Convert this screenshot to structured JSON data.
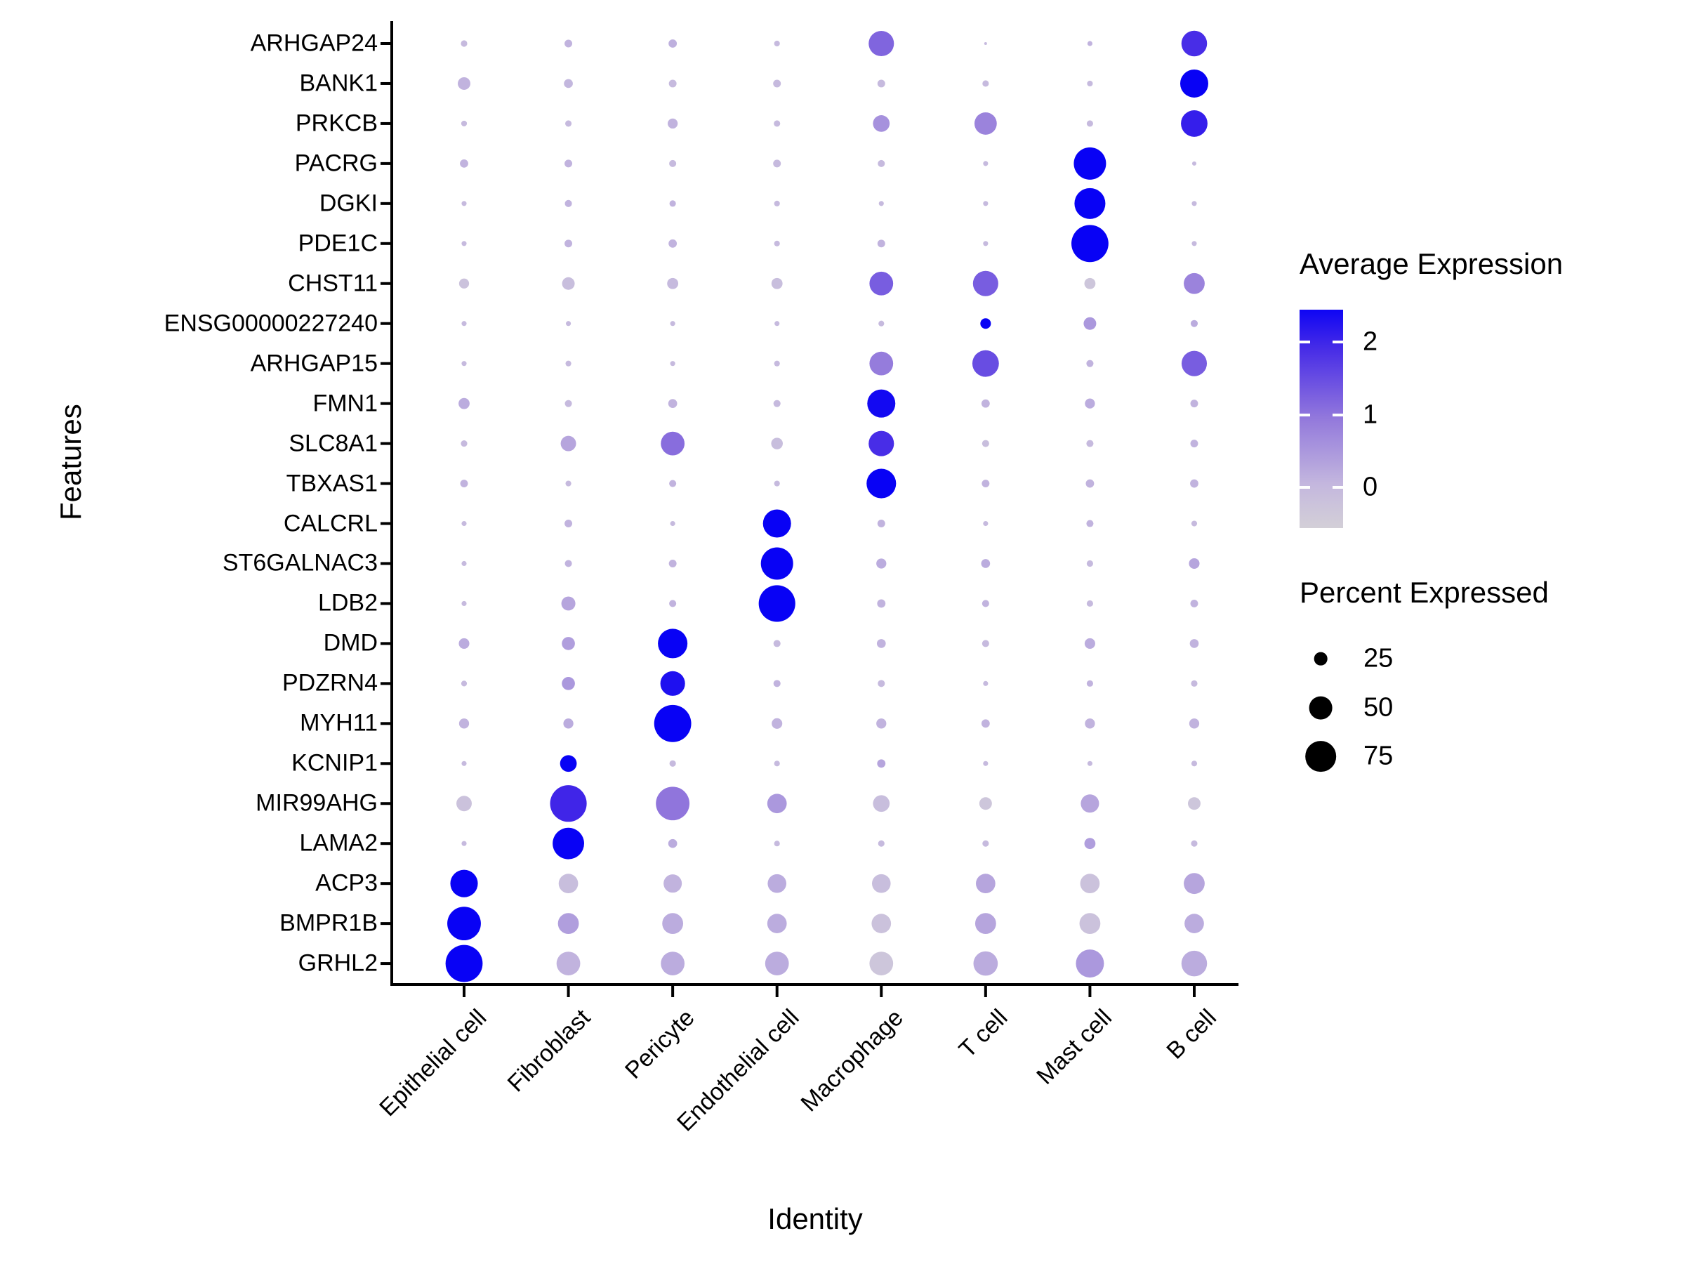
{
  "chart_data": {
    "type": "scatter",
    "variant": "dot_plot",
    "title": "",
    "xlabel": "Identity",
    "ylabel": "Features",
    "grid": false,
    "cell_types": [
      "Epithelial cell",
      "Fibroblast",
      "Pericyte",
      "Endothelial cell",
      "Macrophage",
      "T cell",
      "Mast cell",
      "B cell"
    ],
    "genes": [
      "ARHGAP24",
      "BANK1",
      "PRKCB",
      "PACRG",
      "DGKI",
      "PDE1C",
      "CHST11",
      "ENSG00000227240",
      "ARHGAP15",
      "FMN1",
      "SLC8A1",
      "TBXAS1",
      "CALCRL",
      "ST6GALNAC3",
      "LDB2",
      "DMD",
      "PDZRN4",
      "MYH11",
      "KCNIP1",
      "MIR99AHG",
      "LAMA2",
      "ACP3",
      "BMPR1B",
      "GRHL2"
    ],
    "percent_expressed": [
      [
        13,
        15,
        16,
        12,
        57,
        8,
        11,
        58
      ],
      [
        24,
        17,
        15,
        15,
        15,
        13,
        12,
        66
      ],
      [
        12,
        13,
        19,
        13,
        33,
        48,
        13,
        61
      ],
      [
        16,
        15,
        14,
        15,
        14,
        11,
        81,
        10
      ],
      [
        11,
        14,
        13,
        12,
        11,
        11,
        76,
        11
      ],
      [
        11,
        15,
        16,
        12,
        15,
        11,
        100,
        11
      ],
      [
        19,
        24,
        21,
        21,
        52,
        57,
        21,
        44
      ],
      [
        11,
        11,
        11,
        11,
        12,
        20,
        24,
        14
      ],
      [
        11,
        12,
        11,
        12,
        52,
        61,
        14,
        57
      ],
      [
        21,
        14,
        17,
        14,
        66,
        16,
        19,
        15
      ],
      [
        13,
        30,
        52,
        22,
        57,
        14,
        14,
        15
      ],
      [
        15,
        12,
        14,
        12,
        71,
        15,
        16,
        16
      ],
      [
        11,
        15,
        11,
        66,
        15,
        11,
        14,
        12
      ],
      [
        11,
        14,
        15,
        81,
        19,
        17,
        13,
        20
      ],
      [
        11,
        27,
        14,
        98,
        16,
        14,
        13,
        15
      ],
      [
        20,
        25,
        71,
        14,
        17,
        14,
        20,
        17
      ],
      [
        12,
        25,
        55,
        14,
        14,
        11,
        13,
        13
      ],
      [
        19,
        19,
        100,
        20,
        19,
        16,
        19,
        19
      ],
      [
        11,
        33,
        13,
        12,
        16,
        11,
        11,
        12
      ],
      [
        30,
        98,
        86,
        40,
        33,
        24,
        37,
        24
      ],
      [
        11,
        78,
        17,
        12,
        13,
        13,
        21,
        13
      ],
      [
        64,
        40,
        37,
        38,
        38,
        40,
        40,
        44
      ],
      [
        86,
        44,
        44,
        40,
        40,
        44,
        44,
        40
      ],
      [
        100,
        52,
        52,
        52,
        52,
        54,
        66,
        58
      ]
    ],
    "average_expression": [
      [
        0,
        0.1,
        0.15,
        0,
        1.2,
        0,
        0.1,
        1.9
      ],
      [
        0.1,
        0.05,
        0,
        0,
        0,
        0,
        0,
        2.5
      ],
      [
        0,
        0,
        0.1,
        0,
        0.6,
        0.8,
        0,
        2.1
      ],
      [
        0.1,
        0.1,
        0,
        0,
        0,
        0,
        2.5,
        0
      ],
      [
        0,
        0.1,
        0.1,
        0,
        0,
        0,
        2.5,
        0
      ],
      [
        0,
        0.1,
        0.1,
        0,
        0.1,
        0,
        2.5,
        0
      ],
      [
        -0.2,
        -0.1,
        0,
        -0.1,
        1.3,
        1.3,
        -0.3,
        0.8
      ],
      [
        0,
        0,
        0,
        0,
        0,
        2.5,
        0.5,
        0.2
      ],
      [
        0,
        0,
        0,
        0,
        0.9,
        1.5,
        0.1,
        1.3
      ],
      [
        0.2,
        0,
        0.1,
        0,
        2.4,
        0.1,
        0.2,
        0.1
      ],
      [
        0,
        0.3,
        1.1,
        -0.1,
        1.9,
        -0.1,
        0,
        0.1
      ],
      [
        0.1,
        0,
        0.1,
        0,
        2.5,
        0.1,
        0.1,
        0.1
      ],
      [
        0,
        0.1,
        0,
        2.5,
        0.1,
        0,
        0.1,
        0
      ],
      [
        0,
        0.1,
        0.1,
        2.5,
        0.2,
        0.2,
        0,
        0.3
      ],
      [
        0,
        0.3,
        0.1,
        2.5,
        0.1,
        0.1,
        0,
        0.1
      ],
      [
        0.2,
        0.4,
        2.5,
        0,
        0.1,
        0,
        0.2,
        0.1
      ],
      [
        0,
        0.5,
        2.3,
        0.1,
        0,
        0,
        0.1,
        0
      ],
      [
        0.1,
        0.2,
        2.5,
        0.1,
        0.1,
        0.1,
        0.1,
        0.1
      ],
      [
        0,
        2.5,
        0,
        0,
        0.3,
        0,
        0,
        0
      ],
      [
        -0.2,
        2.0,
        1.0,
        0.5,
        -0.1,
        -0.3,
        0.3,
        -0.3
      ],
      [
        0,
        2.5,
        0.2,
        0,
        0,
        0,
        0.4,
        0
      ],
      [
        2.5,
        -0.1,
        0.1,
        0.2,
        -0.1,
        0.3,
        -0.2,
        0.3
      ],
      [
        2.5,
        0.4,
        0.2,
        0.2,
        -0.2,
        0.3,
        -0.2,
        0.2
      ],
      [
        2.5,
        0.1,
        0.2,
        0.2,
        -0.3,
        0.2,
        0.5,
        0.2
      ]
    ],
    "legend": {
      "color_legend": {
        "title": "Average Expression",
        "tick_labels": [
          "2",
          "1",
          "0"
        ],
        "tick_values": [
          2,
          1,
          0
        ],
        "value_min": -0.56,
        "value_max": 2.45
      },
      "size_legend": {
        "title": "Percent Expressed",
        "labels": [
          "25",
          "50",
          "75"
        ],
        "values": [
          25,
          50,
          75
        ]
      },
      "position": "right"
    },
    "palette_stops": [
      {
        "value": -0.6,
        "color": "#d4d1d7"
      },
      {
        "value": 0.0,
        "color": "#c6bade"
      },
      {
        "value": 1.0,
        "color": "#9075dc"
      },
      {
        "value": 2.0,
        "color": "#4025e8"
      },
      {
        "value": 2.5,
        "color": "#0802f5"
      }
    ],
    "colors": {
      "axis": "#000000",
      "background": "#ffffff",
      "size_legend_dot": "#000000"
    }
  }
}
